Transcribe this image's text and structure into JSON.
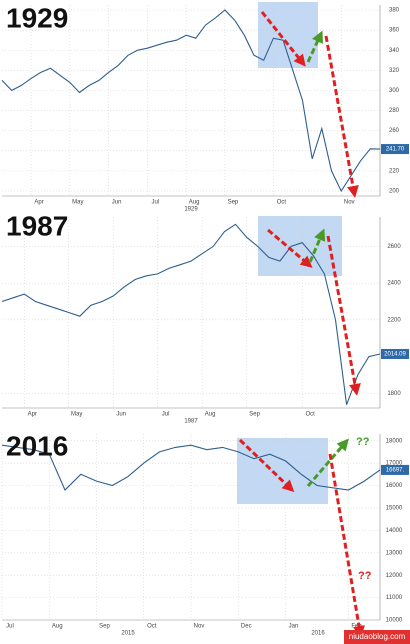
{
  "chart_data": [
    {
      "type": "line",
      "title": "1929",
      "color": "#2e5f8f",
      "categories": [
        null,
        null,
        null,
        "Apr",
        null,
        null,
        null,
        "May",
        null,
        null,
        null,
        "Jun",
        null,
        null,
        null,
        "Jul",
        null,
        null,
        null,
        "Aug",
        null,
        null,
        null,
        "Sep",
        null,
        null,
        null,
        null,
        "Oct",
        null,
        null,
        null,
        null,
        null,
        null,
        "Nov",
        null,
        null,
        null,
        null
      ],
      "values": [
        310,
        300,
        305,
        312,
        318,
        322,
        315,
        308,
        298,
        305,
        310,
        318,
        325,
        335,
        340,
        342,
        345,
        348,
        350,
        355,
        352,
        365,
        372,
        380,
        370,
        355,
        335,
        330,
        352,
        350,
        320,
        290,
        232,
        262,
        220,
        200,
        215,
        230,
        242,
        241.7
      ],
      "value_labels": [
        null,
        null,
        null,
        null,
        null,
        null,
        null,
        null,
        null,
        null,
        null,
        null,
        null,
        null,
        null,
        null,
        null,
        null,
        null,
        null,
        null,
        null,
        null,
        null,
        null,
        null,
        null,
        null,
        null,
        null,
        null,
        null,
        null,
        null,
        null,
        null,
        null,
        null,
        null,
        "241.70"
      ],
      "xlabel": "1929",
      "ylim": [
        195,
        385
      ],
      "yticks": [
        200,
        220,
        240,
        260,
        280,
        300,
        320,
        340,
        360,
        380
      ],
      "grid": true
    },
    {
      "type": "line",
      "title": "1987",
      "color": "#2e5f8f",
      "categories": [
        null,
        null,
        "Apr",
        null,
        null,
        null,
        "May",
        null,
        null,
        null,
        "Jun",
        null,
        null,
        null,
        "Jul",
        null,
        null,
        null,
        "Aug",
        null,
        null,
        null,
        "Sep",
        null,
        null,
        null,
        null,
        "Oct",
        null,
        null,
        null,
        null,
        null,
        null,
        null
      ],
      "values": [
        2300,
        2320,
        2340,
        2300,
        2280,
        2260,
        2240,
        2220,
        2280,
        2300,
        2330,
        2380,
        2420,
        2440,
        2450,
        2480,
        2500,
        2520,
        2560,
        2600,
        2680,
        2720,
        2650,
        2600,
        2540,
        2520,
        2600,
        2620,
        2550,
        2450,
        2200,
        1738,
        1900,
        2000,
        2014.09
      ],
      "value_labels": [
        null,
        null,
        null,
        null,
        null,
        null,
        null,
        null,
        null,
        null,
        null,
        null,
        null,
        null,
        null,
        null,
        null,
        null,
        null,
        null,
        null,
        null,
        null,
        null,
        null,
        null,
        null,
        null,
        null,
        null,
        null,
        null,
        null,
        null,
        "2014.09"
      ],
      "xlabel": "1987",
      "ylim": [
        1720,
        2760
      ],
      "yticks": [
        1800,
        2200,
        2400,
        2600
      ],
      "grid": true
    },
    {
      "type": "line",
      "title": "2016",
      "color": "#2e5f8f",
      "categories": [
        "Jul",
        null,
        null,
        "Aug",
        null,
        null,
        "Sep",
        null,
        null,
        "Oct",
        null,
        null,
        "Nov",
        null,
        null,
        "Dec",
        null,
        null,
        "Jan",
        null,
        null,
        null,
        "Feb",
        null,
        null
      ],
      "values": [
        17800,
        17700,
        17600,
        17400,
        15800,
        16500,
        16200,
        16000,
        16400,
        17000,
        17500,
        17700,
        17800,
        17600,
        17700,
        17500,
        17200,
        17400,
        17100,
        16500,
        16000,
        15900,
        15800,
        16200,
        16697
      ],
      "value_labels": [
        null,
        null,
        null,
        null,
        null,
        null,
        null,
        null,
        null,
        null,
        null,
        null,
        null,
        null,
        null,
        null,
        null,
        null,
        null,
        null,
        null,
        null,
        null,
        null,
        "16697."
      ],
      "xlabels": [
        "2015",
        "2016"
      ],
      "ylim": [
        10000,
        18300
      ],
      "yticks": [
        10000,
        11000,
        12000,
        13000,
        14000,
        15000,
        16000,
        17000,
        18000
      ],
      "grid": true,
      "annotations": [
        "??",
        "??"
      ]
    }
  ],
  "watermark": "niudaoblog.com"
}
